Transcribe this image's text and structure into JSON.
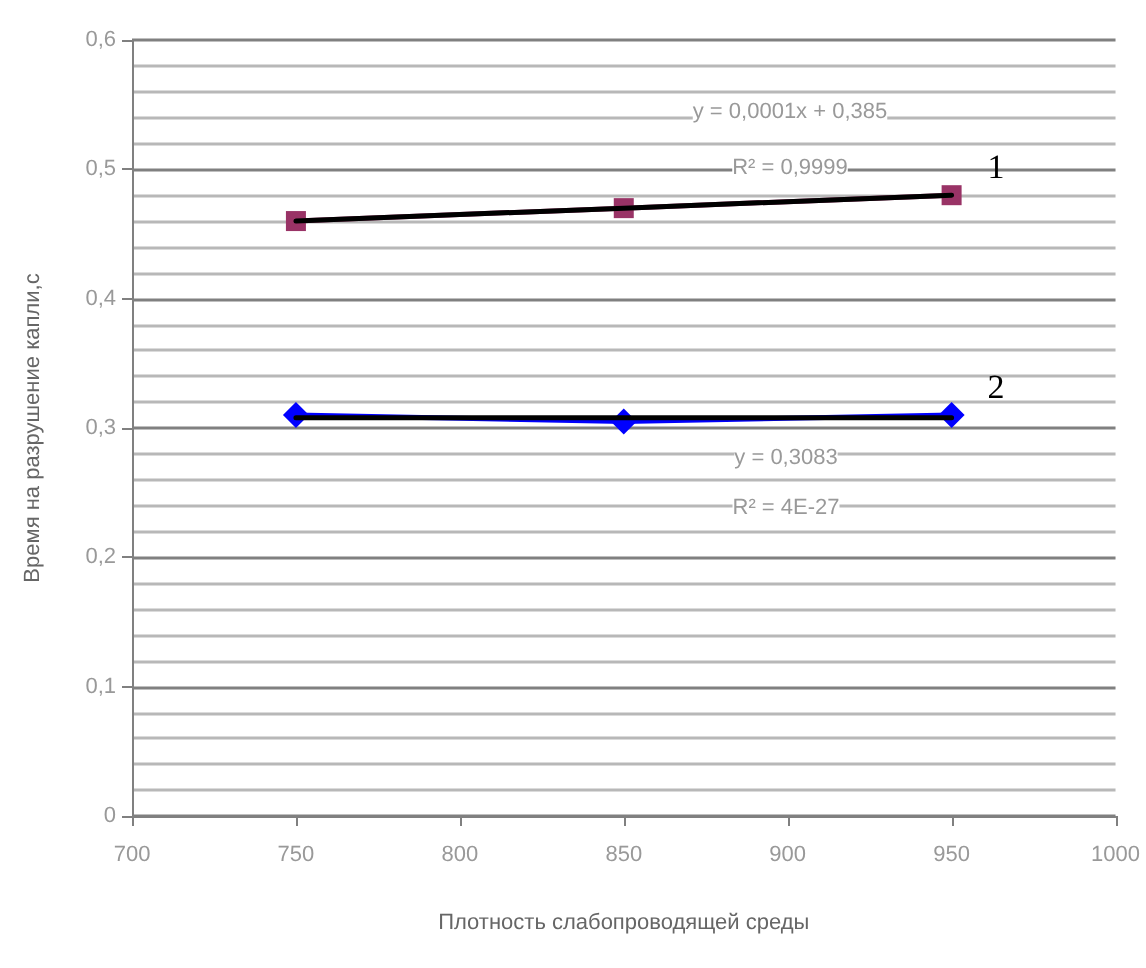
{
  "chart_data": {
    "type": "line",
    "xlabel": "Плотность слабопроводящей среды",
    "ylabel": "Время на разрушение капли,с",
    "x": [
      750,
      850,
      950
    ],
    "series": [
      {
        "name": "1",
        "color": "#993366",
        "marker": "square",
        "values": [
          0.46,
          0.47,
          0.48
        ]
      },
      {
        "name": "2",
        "color": "#0000ff",
        "marker": "diamond",
        "values": [
          0.31,
          0.305,
          0.31
        ]
      },
      {
        "type": "line",
        "color": "#000000",
        "marker": "none",
        "values": [
          0.46,
          0.47,
          0.48
        ]
      },
      {
        "type": "line",
        "color": "#000000",
        "marker": "none",
        "values": [
          0.308,
          0.308,
          0.308
        ]
      }
    ],
    "annotations": [
      "y = 0,0001x + 0,385",
      "R² = 0,9999",
      "y = 0,3083",
      "R² = 4E-27"
    ],
    "xlim": [
      700,
      1000
    ],
    "xticks": [
      700,
      750,
      800,
      850,
      900,
      950,
      1000
    ],
    "ylim": [
      0,
      0.6
    ],
    "yticks": [
      0,
      {
        "value": 0.1,
        "label": "0,1"
      },
      {
        "value": 0.2,
        "label": "0,2"
      },
      {
        "value": 0.3,
        "label": "0,3"
      },
      {
        "value": 0.4,
        "label": "0,4"
      },
      {
        "value": 0.5,
        "label": "0,5"
      },
      {
        "value": 0.6,
        "label": "0,6"
      }
    ],
    "grid": "y",
    "legend": false
  }
}
